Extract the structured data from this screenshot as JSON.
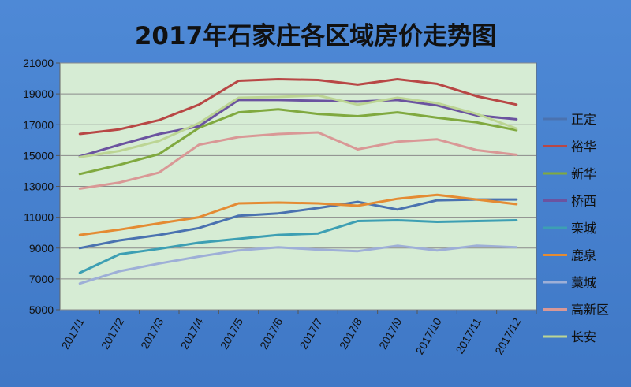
{
  "chart_data": {
    "type": "line",
    "title": "2017年石家庄各区域房价走势图",
    "xlabel": "",
    "ylabel": "",
    "categories": [
      "2017/1",
      "2017/2",
      "2017/3",
      "2017/4",
      "2017/5",
      "2017/6",
      "2017/7",
      "2017/8",
      "2017/9",
      "2017/10",
      "2017/11",
      "2017/12"
    ],
    "ylim": [
      5000,
      21000
    ],
    "yticks": [
      5000,
      7000,
      9000,
      11000,
      13000,
      15000,
      17000,
      19000,
      21000
    ],
    "grid": true,
    "legend_position": "right",
    "series": [
      {
        "name": "正定",
        "color": "#4a72b0",
        "values": [
          9000,
          9500,
          9850,
          10300,
          11100,
          11250,
          11600,
          12000,
          11500,
          12100,
          12150,
          12150
        ]
      },
      {
        "name": "裕华",
        "color": "#b84745",
        "values": [
          16400,
          16700,
          17300,
          18300,
          19850,
          19950,
          19900,
          19600,
          19950,
          19650,
          18850,
          18300
        ]
      },
      {
        "name": "新华",
        "color": "#80a93f",
        "values": [
          13800,
          14400,
          15100,
          16800,
          17800,
          18000,
          17700,
          17550,
          17800,
          17450,
          17150,
          16650
        ]
      },
      {
        "name": "桥西",
        "color": "#6b53a0",
        "values": [
          14950,
          15700,
          16400,
          16900,
          18600,
          18600,
          18550,
          18500,
          18600,
          18250,
          17600,
          17350
        ]
      },
      {
        "name": "栾城",
        "color": "#3d9fb3",
        "values": [
          7400,
          8600,
          8950,
          9350,
          9600,
          9850,
          9950,
          10750,
          10800,
          10700,
          10750,
          10800
        ]
      },
      {
        "name": "鹿泉",
        "color": "#e48b33",
        "values": [
          9850,
          10200,
          10600,
          11000,
          11900,
          11950,
          11900,
          11750,
          12200,
          12450,
          12150,
          11850
        ]
      },
      {
        "name": "藁城",
        "color": "#9eafd7",
        "values": [
          6700,
          7500,
          8000,
          8450,
          8850,
          9050,
          8900,
          8800,
          9150,
          8850,
          9150,
          9050
        ]
      },
      {
        "name": "高新区",
        "color": "#d99896",
        "values": [
          12850,
          13250,
          13900,
          15700,
          16200,
          16400,
          16500,
          15400,
          15900,
          16050,
          15350,
          15050
        ]
      },
      {
        "name": "长安",
        "color": "#bcd594",
        "values": [
          14900,
          15300,
          15950,
          17100,
          18750,
          18800,
          18900,
          18300,
          18750,
          18400,
          17700,
          16750
        ]
      }
    ]
  }
}
